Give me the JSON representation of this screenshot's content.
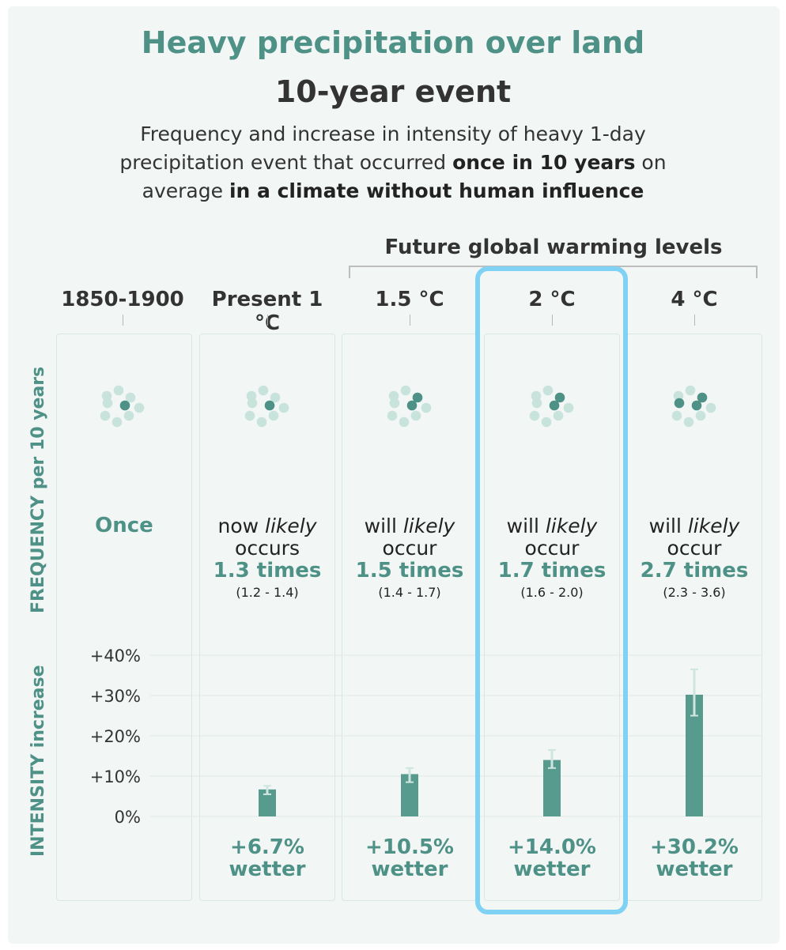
{
  "header": {
    "title": "Heavy precipitation over land",
    "subtitle": "10-year event",
    "desc_1": "Frequency and increase in intensity of heavy 1-day precipitation event that occurred ",
    "desc_bold_1": "once in 10 years",
    "desc_2": " on average ",
    "desc_bold_2": "in a climate without human influence"
  },
  "future_label": "Future global warming levels",
  "axis_labels": {
    "frequency": "FREQUENCY per 10 years",
    "intensity": "INTENSITY increase"
  },
  "columns": [
    {
      "label": "1850-1900",
      "freq_word": "Once",
      "dots_dark": 1
    },
    {
      "label": "Present 1 °C",
      "freq_line1_a": "now ",
      "freq_line1_b": "likely",
      "freq_line2": "occurs",
      "times": "1.3 times",
      "range": "(1.2 - 1.4)",
      "result_1": "+6.7%",
      "result_2": "wetter",
      "dots_dark": 1
    },
    {
      "label": "1.5 °C",
      "freq_line1_a": "will ",
      "freq_line1_b": "likely",
      "freq_line2": "occur",
      "times": "1.5 times",
      "range": "(1.4 - 1.7)",
      "result_1": "+10.5%",
      "result_2": "wetter",
      "dots_dark": 2
    },
    {
      "label": "2 °C",
      "freq_line1_a": "will ",
      "freq_line1_b": "likely",
      "freq_line2": "occur",
      "times": "1.7 times",
      "range": "(1.6 - 2.0)",
      "result_1": "+14.0%",
      "result_2": "wetter",
      "dots_dark": 2
    },
    {
      "label": "4 °C",
      "freq_line1_a": "will ",
      "freq_line1_b": "likely",
      "freq_line2": "occur",
      "times": "2.7 times",
      "range": "(2.3 - 3.6)",
      "result_1": "+30.2%",
      "result_2": "wetter",
      "dots_dark": 3
    }
  ],
  "chart_data": {
    "type": "bar",
    "categories": [
      "1850-1900",
      "Present 1 °C",
      "1.5 °C",
      "2 °C",
      "4 °C"
    ],
    "values": [
      null,
      6.7,
      10.5,
      14.0,
      30.2
    ],
    "error_low": [
      null,
      5.5,
      8.5,
      12.0,
      25.0
    ],
    "error_high": [
      null,
      7.6,
      12.0,
      16.5,
      36.5
    ],
    "ylim": [
      0,
      40
    ],
    "yticks": [
      "0%",
      "+10%",
      "+20%",
      "+30%",
      "+40%"
    ],
    "ylabel": "INTENSITY increase",
    "grid": true
  },
  "colors": {
    "accent": "#4e9186",
    "bar": "#579a8e",
    "dot_light": "#c8e3dc",
    "dot_dark": "#4e9186",
    "highlight": "#7fd2f3"
  }
}
